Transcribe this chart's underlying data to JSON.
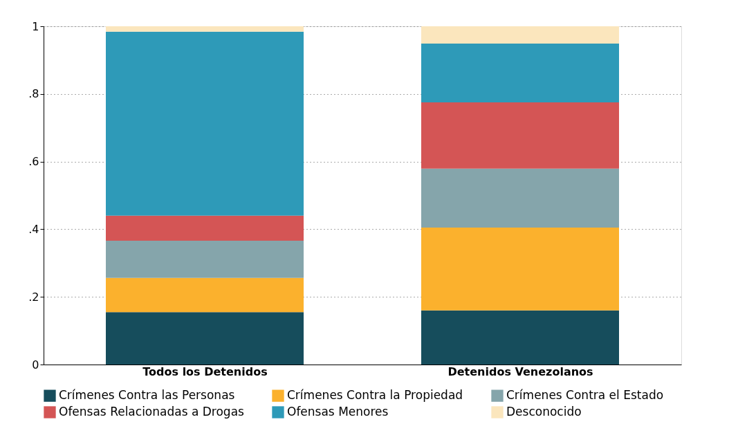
{
  "chart_data": {
    "type": "bar",
    "stacked": true,
    "categories": [
      "Todos los Detenidos",
      "Detenidos Venezolanos"
    ],
    "series": [
      {
        "name": "Crímenes Contra las Personas",
        "color": "#164d5c",
        "values": [
          0.155,
          0.16
        ]
      },
      {
        "name": "Crímenes Contra la Propiedad",
        "color": "#fbb12d",
        "values": [
          0.101,
          0.245
        ]
      },
      {
        "name": "Crímenes Contra el Estado",
        "color": "#85a5ab",
        "values": [
          0.11,
          0.174
        ]
      },
      {
        "name": "Ofensas Relacionadas a Drogas",
        "color": "#d45555",
        "values": [
          0.074,
          0.196
        ]
      },
      {
        "name": "Ofensas Menores",
        "color": "#2e9ab8",
        "values": [
          0.544,
          0.174
        ]
      },
      {
        "name": "Desconocido",
        "color": "#fbe6bd",
        "values": [
          0.016,
          0.051
        ]
      }
    ],
    "ylim": [
      0,
      1
    ],
    "yticks": [
      0,
      {
        "value": 0.2,
        "label": ".2"
      },
      {
        "value": 0.4,
        "label": ".4"
      },
      {
        "value": 0.6,
        "label": ".6"
      },
      {
        "value": 0.8,
        "label": ".8"
      },
      1
    ],
    "grid": "y",
    "legend": "bottom"
  }
}
